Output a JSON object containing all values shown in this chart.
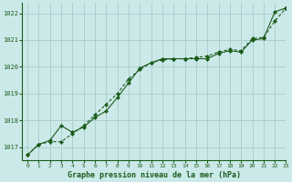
{
  "title": "Graphe pression niveau de la mer (hPa)",
  "bg_color": "#cce9e9",
  "grid_color": "#aad0d0",
  "line_color": "#1a5c1a",
  "xlim": [
    -0.5,
    23
  ],
  "ylim": [
    1016.5,
    1022.4
  ],
  "yticks": [
    1017,
    1018,
    1019,
    1020,
    1021,
    1022
  ],
  "xticks": [
    0,
    1,
    2,
    3,
    4,
    5,
    6,
    7,
    8,
    9,
    10,
    11,
    12,
    13,
    14,
    15,
    16,
    17,
    18,
    19,
    20,
    21,
    22,
    23
  ],
  "series1_x": [
    0,
    1,
    2,
    3,
    4,
    5,
    6,
    7,
    8,
    9,
    10,
    11,
    12,
    13,
    14,
    15,
    16,
    17,
    18,
    19,
    20,
    21,
    22,
    23
  ],
  "series1_y": [
    1016.7,
    1017.1,
    1017.2,
    1017.2,
    1017.5,
    1017.8,
    1018.2,
    1018.6,
    1019.0,
    1019.55,
    1019.9,
    1020.15,
    1020.25,
    1020.3,
    1020.3,
    1020.35,
    1020.4,
    1020.55,
    1020.65,
    1020.6,
    1021.05,
    1021.1,
    1021.7,
    1022.2
  ],
  "series2_x": [
    0,
    1,
    2,
    3,
    4,
    5,
    6,
    7,
    8,
    9,
    10,
    11,
    12,
    13,
    14,
    15,
    16,
    17,
    18,
    19,
    20,
    21,
    22,
    23
  ],
  "series2_y": [
    1016.7,
    1017.1,
    1017.25,
    1017.8,
    1017.55,
    1017.75,
    1018.1,
    1018.35,
    1018.85,
    1019.4,
    1019.95,
    1020.15,
    1020.3,
    1020.3,
    1020.3,
    1020.3,
    1020.3,
    1020.5,
    1020.6,
    1020.55,
    1021.0,
    1021.05,
    1022.05,
    1022.2
  ]
}
